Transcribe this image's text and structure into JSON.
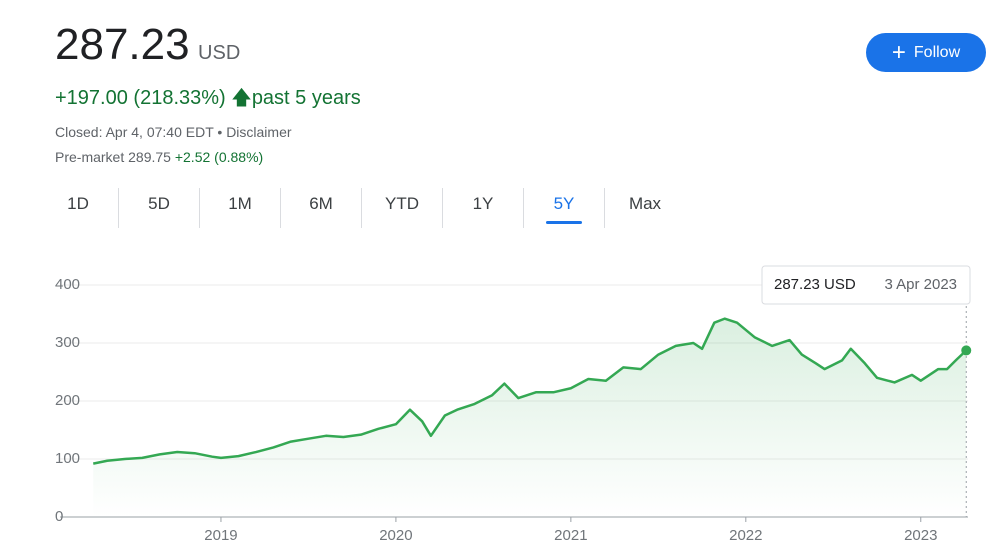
{
  "header": {
    "price": "287.23",
    "currency": "USD",
    "change": "+197.00 (218.33%)",
    "period": "past 5 years",
    "closed": "Closed: Apr 4, 07:40 EDT",
    "disclaimer": "Disclaimer",
    "premarket_label": "Pre-market",
    "premarket_price": "289.75",
    "premarket_change": "+2.52 (0.88%)",
    "follow": "Follow"
  },
  "tabs": [
    "1D",
    "5D",
    "1M",
    "6M",
    "YTD",
    "1Y",
    "5Y",
    "Max"
  ],
  "selected_tab": "5Y",
  "tooltip": {
    "value": "287.23 USD",
    "date": "3 Apr 2023"
  },
  "chart_data": {
    "type": "line",
    "color": "#34a853",
    "x": [
      2018.27,
      2018.35,
      2018.45,
      2018.55,
      2018.65,
      2018.75,
      2018.85,
      2018.95,
      2019.0,
      2019.1,
      2019.2,
      2019.3,
      2019.4,
      2019.5,
      2019.6,
      2019.7,
      2019.8,
      2019.9,
      2020.0,
      2020.08,
      2020.15,
      2020.2,
      2020.28,
      2020.35,
      2020.45,
      2020.55,
      2020.62,
      2020.7,
      2020.8,
      2020.9,
      2021.0,
      2021.1,
      2021.2,
      2021.3,
      2021.4,
      2021.5,
      2021.6,
      2021.7,
      2021.75,
      2021.82,
      2021.88,
      2021.95,
      2022.05,
      2022.15,
      2022.25,
      2022.32,
      2022.4,
      2022.45,
      2022.55,
      2022.6,
      2022.68,
      2022.75,
      2022.85,
      2022.95,
      2023.0,
      2023.1,
      2023.15,
      2023.2,
      2023.26
    ],
    "values": [
      92,
      97,
      100,
      102,
      108,
      112,
      110,
      104,
      102,
      105,
      112,
      120,
      130,
      135,
      140,
      138,
      142,
      152,
      160,
      185,
      165,
      140,
      175,
      185,
      195,
      210,
      230,
      205,
      215,
      215,
      222,
      238,
      235,
      258,
      255,
      280,
      295,
      300,
      290,
      335,
      342,
      335,
      310,
      295,
      305,
      280,
      265,
      255,
      270,
      290,
      265,
      240,
      232,
      245,
      235,
      255,
      255,
      270,
      287.23
    ],
    "xlim": [
      2018.08,
      2023.27
    ],
    "xticks": [
      2019,
      2020,
      2021,
      2022,
      2023
    ],
    "ylim": [
      0,
      400
    ],
    "yticks": [
      0,
      100,
      200,
      300,
      400
    ],
    "grid": true
  }
}
